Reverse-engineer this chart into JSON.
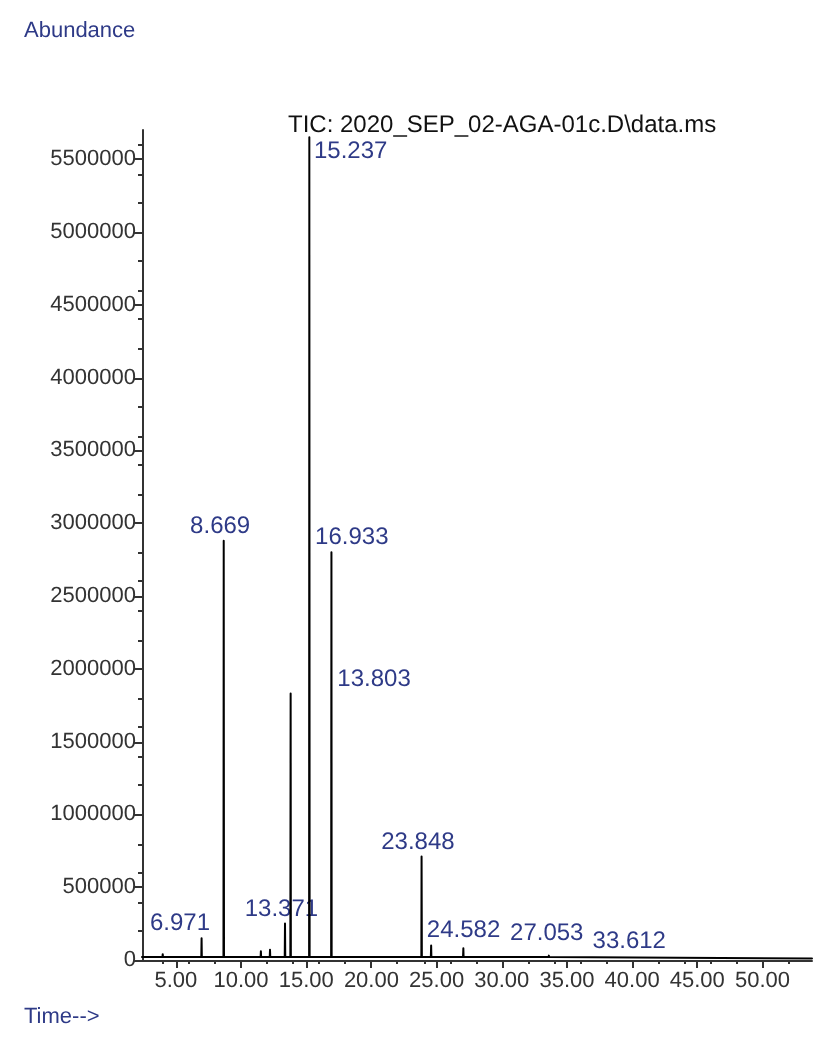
{
  "chart_data": {
    "type": "line",
    "title": "TIC: 2020_SEP_02-AGA-01c.D\\data.ms",
    "xlabel": "Time-->",
    "ylabel": "Abundance",
    "x": [
      2.4,
      3.97,
      3.99,
      4.01,
      6.95,
      6.971,
      6.99,
      8.65,
      8.669,
      8.69,
      11.5,
      11.52,
      11.54,
      12.2,
      12.22,
      12.24,
      13.35,
      13.371,
      13.39,
      13.78,
      13.803,
      13.82,
      15.22,
      15.237,
      15.26,
      16.91,
      16.933,
      16.95,
      21.0,
      23.83,
      23.848,
      23.87,
      24.56,
      24.582,
      24.6,
      27.03,
      27.053,
      27.07,
      33.59,
      33.612,
      33.63,
      53.8
    ],
    "series": [
      {
        "color": "#000000",
        "values": [
          20000,
          20000,
          40000,
          20000,
          20000,
          150000,
          20000,
          20000,
          2880000,
          20000,
          20000,
          60000,
          20000,
          20000,
          70000,
          20000,
          20000,
          250000,
          20000,
          20000,
          1830000,
          20000,
          20000,
          5650000,
          20000,
          20000,
          2800000,
          20000,
          20000,
          20000,
          710000,
          20000,
          20000,
          100000,
          20000,
          20000,
          80000,
          20000,
          20000,
          30000,
          20000,
          10000
        ]
      }
    ],
    "annotations": [
      {
        "text": "6.971",
        "x": 6.971,
        "y": 150000
      },
      {
        "text": "8.669",
        "x": 8.669,
        "y": 2880000
      },
      {
        "text": "13.371",
        "x": 13.371,
        "y": 250000
      },
      {
        "text": "13.803",
        "x": 13.803,
        "y": 1830000
      },
      {
        "text": "15.237",
        "x": 15.237,
        "y": 5650000
      },
      {
        "text": "16.933",
        "x": 16.933,
        "y": 2800000
      },
      {
        "text": "23.848",
        "x": 23.848,
        "y": 710000
      },
      {
        "text": "24.582",
        "x": 24.582,
        "y": 100000
      },
      {
        "text": "27.053",
        "x": 27.053,
        "y": 80000
      },
      {
        "text": "33.612",
        "x": 33.612,
        "y": 30000
      }
    ],
    "xlim": [
      2.4,
      53.8
    ],
    "xticks": [
      {
        "value": 5,
        "label": "5.00"
      },
      {
        "value": 10,
        "label": "10.00"
      },
      {
        "value": 15,
        "label": "15.00"
      },
      {
        "value": 20,
        "label": "20.00"
      },
      {
        "value": 25,
        "label": "25.00"
      },
      {
        "value": 30,
        "label": "30.00"
      },
      {
        "value": 35,
        "label": "35.00"
      },
      {
        "value": 40,
        "label": "40.00"
      },
      {
        "value": 45,
        "label": "45.00"
      },
      {
        "value": 50,
        "label": "50.00"
      }
    ],
    "ylim": [
      0,
      5700000
    ],
    "yticks": [
      0,
      500000,
      1000000,
      1500000,
      2000000,
      2500000,
      3000000,
      3500000,
      4000000,
      4500000,
      5000000,
      5500000
    ],
    "grid": false,
    "marker": "none",
    "line_style": "solid"
  }
}
